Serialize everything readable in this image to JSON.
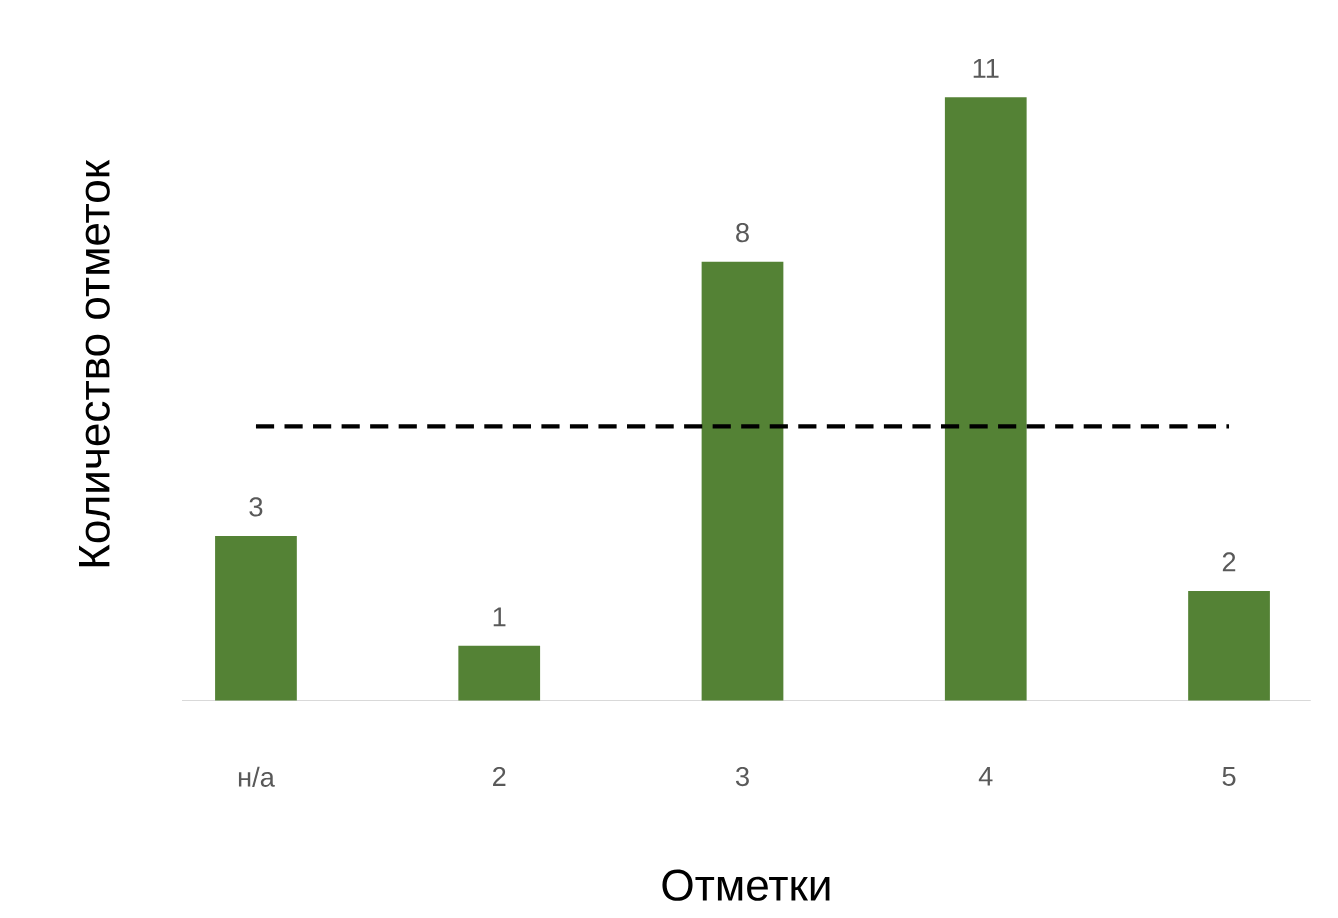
{
  "chart_data": {
    "type": "bar",
    "xlabel": "Отметки",
    "ylabel": "Количество отметок",
    "categories": [
      "н/а",
      "2",
      "3",
      "4",
      "5"
    ],
    "values": [
      3,
      1,
      8,
      11,
      2
    ],
    "color": "#548235",
    "data_labels": true,
    "ref_lines": [
      {
        "axis": "y",
        "value": 5,
        "color": "#000000",
        "line_style": "dashed"
      }
    ]
  }
}
